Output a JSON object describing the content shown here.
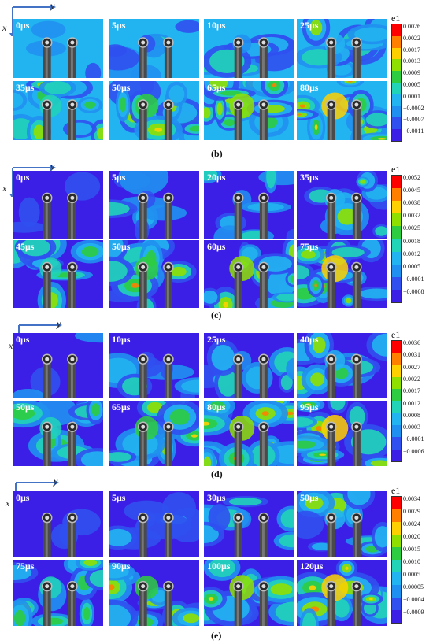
{
  "axes": {
    "x": "x",
    "y": "y"
  },
  "colorbar_title": "e1",
  "colorbar_colors": [
    "#ff0000",
    "#ff7f00",
    "#ffd000",
    "#8fe000",
    "#2ecc40",
    "#21d4b8",
    "#22b4f0",
    "#2090f0",
    "#3050f0",
    "#3c1fe6",
    "#d033e0"
  ],
  "panels": [
    {
      "caption": "(b)",
      "frames": [
        "0μs",
        "5μs",
        "10μs",
        "25μs",
        "35μs",
        "50μs",
        "65μs",
        "80μs"
      ],
      "legend": [
        "0.0026",
        "0.0022",
        "0.0017",
        "0.0013",
        "0.0009",
        "0.0005",
        "0.0001",
        "−0.0002",
        "−0.0007",
        "−0.0011"
      ]
    },
    {
      "caption": "(c)",
      "frames": [
        "0μs",
        "5μs",
        "20μs",
        "35μs",
        "45μs",
        "50μs",
        "60μs",
        "75μs"
      ],
      "legend": [
        "0.0052",
        "0.0045",
        "0.0038",
        "0.0032",
        "0.0025",
        "0.0018",
        "0.0012",
        "0.0005",
        "−0.0001",
        "−0.0008"
      ]
    },
    {
      "caption": "(d)",
      "frames": [
        "0μs",
        "10μs",
        "25μs",
        "40μs",
        "50μs",
        "65μs",
        "80μs",
        "95μs"
      ],
      "legend": [
        "0.0036",
        "0.0031",
        "0.0027",
        "0.0022",
        "0.0017",
        "0.0012",
        "0.0008",
        "0.0003",
        "−0.0001",
        "−0.0006"
      ]
    },
    {
      "caption": "(e)",
      "frames": [
        "0μs",
        "5μs",
        "30μs",
        "50μs",
        "75μs",
        "90μs",
        "100μs",
        "120μs"
      ],
      "legend": [
        "0.0034",
        "0.0029",
        "0.0024",
        "0.0020",
        "0.0015",
        "0.0010",
        "0.0005",
        "0.00005",
        "−0.0004",
        "−0.0009"
      ]
    }
  ]
}
